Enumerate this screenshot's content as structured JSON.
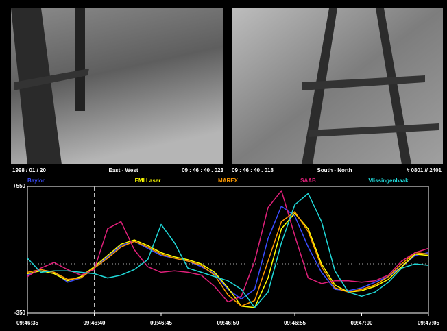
{
  "header": {
    "date": "1998 / 01 / 20",
    "left_view": "East - West",
    "left_time": "09 : 46 : 40 . 023",
    "right_time": "09 : 46 : 40 . 018",
    "right_view": "South - North",
    "frame": "# 0801 // 2401"
  },
  "chart_data": {
    "type": "line",
    "x": [
      35195,
      35196,
      35197,
      35198,
      35199,
      35200,
      35201,
      35202,
      35203,
      35204,
      35205,
      35206,
      35207,
      35208,
      35209,
      35210,
      35211,
      35212,
      35213,
      35214,
      35215,
      35216,
      35217,
      35218,
      35219,
      35220,
      35221,
      35222,
      35223,
      35224,
      35225
    ],
    "xlim": [
      35195,
      35225
    ],
    "xticks": [
      {
        "value": 35195,
        "label": "09:46:35"
      },
      {
        "value": 35200,
        "label": "09:46:40"
      },
      {
        "value": 35205,
        "label": "09:46:45"
      },
      {
        "value": 35210,
        "label": "09:46:50"
      },
      {
        "value": 35215,
        "label": "09:46:55"
      },
      {
        "value": 35220,
        "label": "09:47:00"
      },
      {
        "value": 35225,
        "label": "09:47:05"
      }
    ],
    "ylim": [
      -350,
      550
    ],
    "yticks": [
      {
        "value": 550,
        "label": "+550"
      },
      -350
    ],
    "zero_line": true,
    "cursor_x": 35200,
    "series": [
      {
        "name": "Baylor",
        "color": "#3a4cff",
        "values": [
          -80,
          -40,
          -60,
          -130,
          -100,
          -30,
          50,
          130,
          160,
          110,
          60,
          40,
          20,
          -20,
          -70,
          -180,
          -250,
          -180,
          180,
          410,
          340,
          120,
          -60,
          -180,
          -190,
          -170,
          -130,
          -90,
          -20,
          60,
          80
        ]
      },
      {
        "name": "EMI Laser",
        "color": "#ffff00",
        "values": [
          -70,
          -50,
          -70,
          -120,
          -90,
          -20,
          60,
          140,
          170,
          130,
          80,
          50,
          30,
          0,
          -60,
          -170,
          -300,
          -310,
          -100,
          250,
          360,
          250,
          0,
          -150,
          -200,
          -190,
          -160,
          -110,
          -20,
          70,
          60
        ]
      },
      {
        "name": "MAREX",
        "color": "#ff9a00",
        "values": [
          -60,
          -40,
          -60,
          -110,
          -100,
          -30,
          40,
          120,
          160,
          120,
          70,
          40,
          20,
          -10,
          -80,
          -220,
          -300,
          -260,
          20,
          300,
          370,
          230,
          -20,
          -170,
          -200,
          -180,
          -150,
          -90,
          0,
          80,
          70
        ]
      },
      {
        "name": "SAAB",
        "color": "#e0207a",
        "values": [
          -90,
          -30,
          10,
          -40,
          -80,
          -40,
          250,
          300,
          100,
          -20,
          -60,
          -50,
          -60,
          -80,
          -160,
          -270,
          -230,
          20,
          400,
          520,
          200,
          -100,
          -140,
          -120,
          -120,
          -130,
          -120,
          -80,
          20,
          80,
          110
        ]
      },
      {
        "name": "Vlissingenbaak",
        "color": "#20d8d8",
        "values": [
          40,
          -60,
          -50,
          -50,
          -60,
          -70,
          -100,
          -80,
          -40,
          30,
          280,
          150,
          -30,
          -60,
          -90,
          -120,
          -180,
          -310,
          -200,
          150,
          420,
          500,
          300,
          -50,
          -200,
          -230,
          -200,
          -130,
          -30,
          0,
          -10
        ]
      }
    ]
  }
}
